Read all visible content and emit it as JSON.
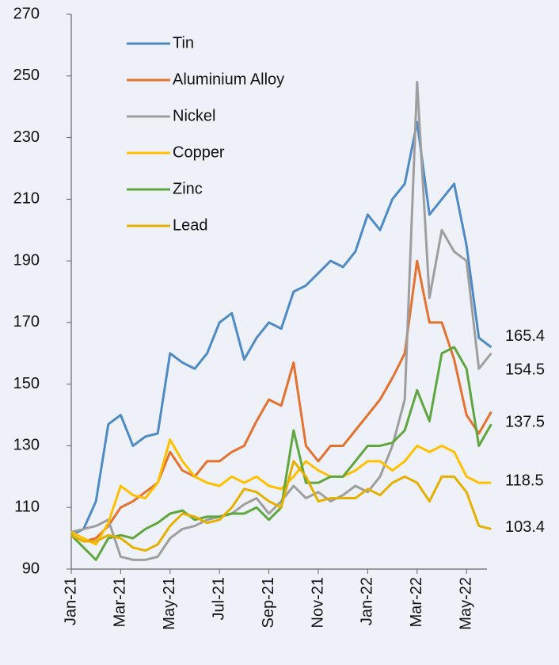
{
  "chart_data": {
    "type": "line",
    "categories": [
      "Jan-21",
      null,
      null,
      null,
      "Mar-21",
      null,
      null,
      null,
      "May-21",
      null,
      null,
      null,
      "Jul-21",
      null,
      null,
      null,
      "Sep-21",
      null,
      null,
      null,
      "Nov-21",
      null,
      null,
      null,
      "Jan-22",
      null,
      null,
      null,
      "Mar-22",
      null,
      null,
      null,
      "May-22",
      null,
      null
    ],
    "series": [
      {
        "name": "Tin",
        "color": "#4e8bc4",
        "values": [
          101,
          103,
          112,
          137,
          140,
          130,
          133,
          134,
          160,
          157,
          155,
          160,
          170,
          173,
          158,
          165,
          170,
          168,
          180,
          182,
          186,
          190,
          188,
          193,
          205,
          200,
          210,
          215,
          235,
          205,
          210,
          215,
          195,
          165,
          162
        ]
      },
      {
        "name": "Aluminium  Alloy",
        "color": "#e5712f",
        "values": [
          101,
          99,
          100,
          104,
          110,
          112,
          115,
          118,
          128,
          122,
          120,
          125,
          125,
          128,
          130,
          138,
          145,
          143,
          157,
          130,
          125,
          130,
          130,
          135,
          140,
          145,
          152,
          160,
          190,
          170,
          170,
          158,
          140,
          134,
          141
        ]
      },
      {
        "name": "Nickel",
        "color": "#9e9e9e",
        "values": [
          102,
          103,
          104,
          106,
          94,
          93,
          93,
          94,
          100,
          103,
          104,
          106,
          107,
          108,
          111,
          113,
          108,
          112,
          117,
          113,
          115,
          112,
          114,
          117,
          115,
          120,
          130,
          145,
          248,
          178,
          200,
          193,
          190,
          155,
          160
        ]
      },
      {
        "name": "Copper",
        "color": "#ffc000",
        "values": [
          102,
          100,
          98,
          105,
          117,
          114,
          113,
          118,
          132,
          125,
          120,
          118,
          117,
          120,
          118,
          120,
          117,
          116,
          120,
          125,
          122,
          120,
          120,
          122,
          125,
          125,
          122,
          125,
          130,
          128,
          130,
          128,
          120,
          118,
          118
        ]
      },
      {
        "name": "Zinc",
        "color": "#5fa63f",
        "values": [
          101,
          97,
          93,
          100,
          101,
          100,
          103,
          105,
          108,
          109,
          106,
          107,
          107,
          108,
          108,
          110,
          106,
          110,
          135,
          118,
          118,
          120,
          120,
          125,
          130,
          130,
          131,
          135,
          148,
          138,
          160,
          162,
          155,
          130,
          137
        ]
      },
      {
        "name": "Lead",
        "color": "#e6b000",
        "values": [
          101,
          99,
          99,
          101,
          100,
          97,
          96,
          98,
          104,
          108,
          107,
          105,
          106,
          110,
          116,
          115,
          112,
          110,
          125,
          120,
          112,
          113,
          113,
          113,
          116,
          114,
          118,
          120,
          118,
          112,
          120,
          120,
          115,
          104,
          103
        ]
      }
    ],
    "end_labels": [
      165.4,
      154.5,
      137.5,
      118.5,
      103.4
    ],
    "ylim": [
      90,
      270
    ],
    "yticks": [
      90,
      110,
      130,
      150,
      170,
      190,
      210,
      230,
      250,
      270
    ],
    "grid": false
  }
}
